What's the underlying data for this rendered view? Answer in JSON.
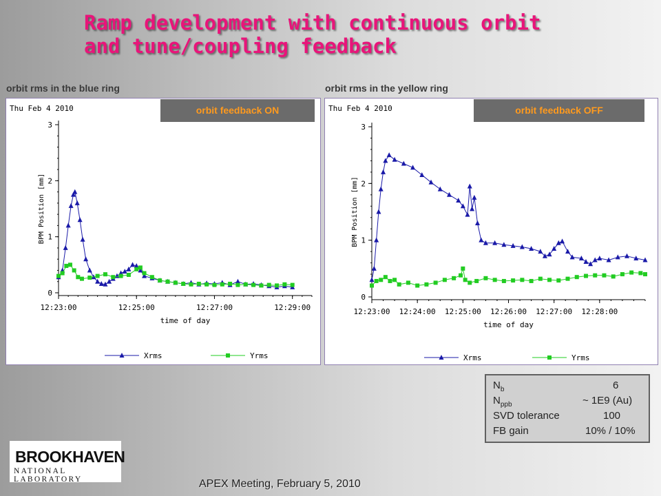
{
  "title_line1": "Ramp development with continuous orbit",
  "title_line2": "and tune/coupling feedback",
  "footer": "APEX Meeting,  February 5, 2010",
  "logo": {
    "line1": "BROOKHAVEN",
    "line2": "NATIONAL LABORATORY"
  },
  "info": {
    "nb_label": "N",
    "nb_sub": "b",
    "nb_value": "6",
    "nppb_label": "N",
    "nppb_sub": "ppb",
    "nppb_value": "~ 1E9 (Au)",
    "svd_label": "SVD tolerance",
    "svd_value": "100",
    "fb_label": "FB gain",
    "fb_value": "10% / 10%"
  },
  "colors": {
    "xrms": "#1a1aa8",
    "yrms": "#22cc22",
    "title": "#e8157a",
    "badge_text": "#ff9a1e"
  },
  "chart_data": [
    {
      "type": "line",
      "ring_label": "orbit rms in the blue ring",
      "date": "Thu Feb  4 2010",
      "badge": "orbit feedback ON",
      "xlabel": "time of day",
      "ylabel": "BPM Position [mm]",
      "x_minutes_range": [
        743,
        749.5
      ],
      "ylim": [
        0,
        3
      ],
      "x_ticks": [
        {
          "m": 743,
          "label": "12:23:00"
        },
        {
          "m": 745,
          "label": "12:25:00"
        },
        {
          "m": 747,
          "label": "12:27:00"
        },
        {
          "m": 749,
          "label": "12:29:00"
        }
      ],
      "y_ticks": [
        0,
        1,
        2,
        3
      ],
      "legend": [
        "Xrms",
        "Yrms"
      ],
      "series": [
        {
          "name": "Xrms",
          "points": [
            [
              743.0,
              0.28
            ],
            [
              743.1,
              0.4
            ],
            [
              743.18,
              0.8
            ],
            [
              743.25,
              1.2
            ],
            [
              743.32,
              1.55
            ],
            [
              743.38,
              1.75
            ],
            [
              743.42,
              1.8
            ],
            [
              743.48,
              1.6
            ],
            [
              743.55,
              1.3
            ],
            [
              743.62,
              0.95
            ],
            [
              743.7,
              0.6
            ],
            [
              743.8,
              0.4
            ],
            [
              743.9,
              0.28
            ],
            [
              744.0,
              0.2
            ],
            [
              744.1,
              0.16
            ],
            [
              744.2,
              0.15
            ],
            [
              744.3,
              0.2
            ],
            [
              744.4,
              0.25
            ],
            [
              744.5,
              0.3
            ],
            [
              744.6,
              0.35
            ],
            [
              744.7,
              0.38
            ],
            [
              744.8,
              0.42
            ],
            [
              744.9,
              0.5
            ],
            [
              745.0,
              0.48
            ],
            [
              745.1,
              0.4
            ],
            [
              745.2,
              0.3
            ],
            [
              745.4,
              0.26
            ],
            [
              745.6,
              0.22
            ],
            [
              745.8,
              0.2
            ],
            [
              746.0,
              0.18
            ],
            [
              746.2,
              0.16
            ],
            [
              746.4,
              0.18
            ],
            [
              746.6,
              0.15
            ],
            [
              746.8,
              0.17
            ],
            [
              747.0,
              0.16
            ],
            [
              747.2,
              0.18
            ],
            [
              747.4,
              0.14
            ],
            [
              747.6,
              0.2
            ],
            [
              747.8,
              0.15
            ],
            [
              748.0,
              0.16
            ],
            [
              748.2,
              0.14
            ],
            [
              748.4,
              0.12
            ],
            [
              748.6,
              0.1
            ],
            [
              748.8,
              0.12
            ],
            [
              749.0,
              0.1
            ]
          ]
        },
        {
          "name": "Yrms",
          "points": [
            [
              743.0,
              0.3
            ],
            [
              743.1,
              0.35
            ],
            [
              743.2,
              0.48
            ],
            [
              743.3,
              0.5
            ],
            [
              743.4,
              0.4
            ],
            [
              743.5,
              0.28
            ],
            [
              743.6,
              0.25
            ],
            [
              743.8,
              0.27
            ],
            [
              744.0,
              0.3
            ],
            [
              744.2,
              0.33
            ],
            [
              744.4,
              0.28
            ],
            [
              744.6,
              0.3
            ],
            [
              744.8,
              0.32
            ],
            [
              745.0,
              0.42
            ],
            [
              745.1,
              0.45
            ],
            [
              745.2,
              0.35
            ],
            [
              745.4,
              0.28
            ],
            [
              745.6,
              0.22
            ],
            [
              745.8,
              0.2
            ],
            [
              746.0,
              0.18
            ],
            [
              746.2,
              0.16
            ],
            [
              746.4,
              0.15
            ],
            [
              746.6,
              0.16
            ],
            [
              746.8,
              0.15
            ],
            [
              747.0,
              0.14
            ],
            [
              747.2,
              0.15
            ],
            [
              747.4,
              0.16
            ],
            [
              747.6,
              0.14
            ],
            [
              747.8,
              0.15
            ],
            [
              748.0,
              0.14
            ],
            [
              748.2,
              0.13
            ],
            [
              748.4,
              0.14
            ],
            [
              748.6,
              0.13
            ],
            [
              748.8,
              0.15
            ],
            [
              749.0,
              0.14
            ]
          ]
        }
      ]
    },
    {
      "type": "line",
      "ring_label": "orbit rms in the yellow ring",
      "date": "Thu Feb  4 2010",
      "badge": "orbit feedback OFF",
      "xlabel": "time of day",
      "ylabel": "BPM Position [mm]",
      "x_minutes_range": [
        743,
        749
      ],
      "ylim": [
        0,
        3
      ],
      "x_ticks": [
        {
          "m": 743,
          "label": "12:23:00"
        },
        {
          "m": 744,
          "label": "12:24:00"
        },
        {
          "m": 745,
          "label": "12:25:00"
        },
        {
          "m": 746,
          "label": "12:26:00"
        },
        {
          "m": 747,
          "label": "12:27:00"
        },
        {
          "m": 748,
          "label": "12:28:00"
        }
      ],
      "y_ticks": [
        0,
        1,
        2,
        3
      ],
      "legend": [
        "Xrms",
        "Yrms"
      ],
      "series": [
        {
          "name": "Xrms",
          "points": [
            [
              743.0,
              0.3
            ],
            [
              743.05,
              0.5
            ],
            [
              743.1,
              1.0
            ],
            [
              743.15,
              1.5
            ],
            [
              743.2,
              1.9
            ],
            [
              743.25,
              2.2
            ],
            [
              743.3,
              2.4
            ],
            [
              743.38,
              2.5
            ],
            [
              743.5,
              2.42
            ],
            [
              743.7,
              2.35
            ],
            [
              743.9,
              2.28
            ],
            [
              744.1,
              2.15
            ],
            [
              744.3,
              2.02
            ],
            [
              744.5,
              1.9
            ],
            [
              744.7,
              1.8
            ],
            [
              744.9,
              1.7
            ],
            [
              745.0,
              1.6
            ],
            [
              745.1,
              1.45
            ],
            [
              745.15,
              1.95
            ],
            [
              745.2,
              1.55
            ],
            [
              745.25,
              1.75
            ],
            [
              745.32,
              1.3
            ],
            [
              745.4,
              1.0
            ],
            [
              745.5,
              0.95
            ],
            [
              745.7,
              0.95
            ],
            [
              745.9,
              0.92
            ],
            [
              746.1,
              0.9
            ],
            [
              746.3,
              0.88
            ],
            [
              746.5,
              0.85
            ],
            [
              746.7,
              0.8
            ],
            [
              746.8,
              0.72
            ],
            [
              746.9,
              0.75
            ],
            [
              747.0,
              0.85
            ],
            [
              747.1,
              0.95
            ],
            [
              747.18,
              0.98
            ],
            [
              747.3,
              0.8
            ],
            [
              747.4,
              0.7
            ],
            [
              747.6,
              0.68
            ],
            [
              747.7,
              0.62
            ],
            [
              747.8,
              0.58
            ],
            [
              747.9,
              0.65
            ],
            [
              748.0,
              0.68
            ],
            [
              748.2,
              0.65
            ],
            [
              748.4,
              0.7
            ],
            [
              748.6,
              0.72
            ],
            [
              748.8,
              0.68
            ],
            [
              749.0,
              0.65
            ]
          ]
        },
        {
          "name": "Yrms",
          "points": [
            [
              743.0,
              0.2
            ],
            [
              743.1,
              0.28
            ],
            [
              743.2,
              0.3
            ],
            [
              743.3,
              0.35
            ],
            [
              743.4,
              0.28
            ],
            [
              743.5,
              0.3
            ],
            [
              743.6,
              0.22
            ],
            [
              743.8,
              0.25
            ],
            [
              744.0,
              0.2
            ],
            [
              744.2,
              0.22
            ],
            [
              744.4,
              0.25
            ],
            [
              744.6,
              0.3
            ],
            [
              744.8,
              0.33
            ],
            [
              744.95,
              0.38
            ],
            [
              745.0,
              0.5
            ],
            [
              745.05,
              0.3
            ],
            [
              745.15,
              0.25
            ],
            [
              745.3,
              0.28
            ],
            [
              745.5,
              0.33
            ],
            [
              745.7,
              0.3
            ],
            [
              745.9,
              0.28
            ],
            [
              746.1,
              0.29
            ],
            [
              746.3,
              0.3
            ],
            [
              746.5,
              0.28
            ],
            [
              746.7,
              0.32
            ],
            [
              746.9,
              0.3
            ],
            [
              747.1,
              0.29
            ],
            [
              747.3,
              0.32
            ],
            [
              747.5,
              0.35
            ],
            [
              747.7,
              0.37
            ],
            [
              747.9,
              0.38
            ],
            [
              748.1,
              0.38
            ],
            [
              748.3,
              0.36
            ],
            [
              748.5,
              0.4
            ],
            [
              748.7,
              0.43
            ],
            [
              748.9,
              0.42
            ],
            [
              749.0,
              0.4
            ]
          ]
        }
      ]
    }
  ]
}
